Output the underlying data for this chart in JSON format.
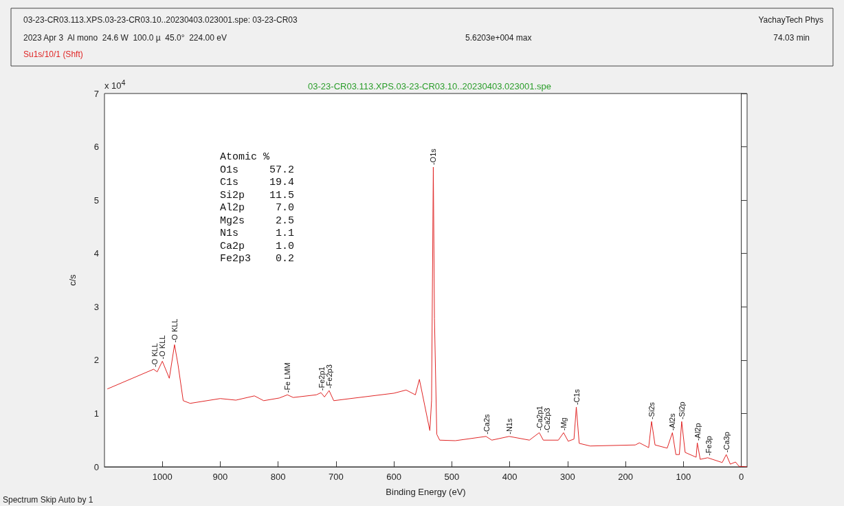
{
  "chart_data": {
    "type": "line",
    "title": "03-23-CR03.113.XPS.03-23-CR03.10..20230403.023001.spe",
    "xlabel": "Binding Energy (eV)",
    "ylabel": "c/s",
    "xlim": [
      1100,
      -10
    ],
    "xticks": [
      0,
      100,
      200,
      300,
      400,
      500,
      600,
      700,
      800,
      900,
      1000
    ],
    "ylim": [
      0,
      7
    ],
    "yticks": [
      0,
      1,
      2,
      3,
      4,
      5,
      6,
      7
    ],
    "marker": "none",
    "line_style": "solid",
    "series": [
      {
        "color": "#e02424",
        "x": [
          1095,
          1015,
          1009,
          1000,
          988,
          979,
          973,
          964,
          952,
          900,
          873,
          841,
          825,
          798,
          784,
          774,
          734,
          726,
          720,
          712,
          704,
          675,
          600,
          579,
          563,
          556,
          538,
          535,
          532,
          530,
          526,
          521,
          494,
          441,
          431,
          401,
          366,
          349,
          342,
          316,
          307,
          299,
          289,
          285,
          280,
          261,
          183,
          176,
          160,
          155,
          149,
          128,
          119,
          113,
          107,
          103,
          97,
          78,
          76,
          71,
          58,
          33,
          26,
          19,
          10,
          4,
          -10
        ],
        "values": [
          1.46,
          1.83,
          1.78,
          1.98,
          1.66,
          2.29,
          1.92,
          1.24,
          1.19,
          1.28,
          1.25,
          1.33,
          1.24,
          1.29,
          1.35,
          1.3,
          1.35,
          1.39,
          1.31,
          1.43,
          1.24,
          1.28,
          1.38,
          1.44,
          1.35,
          1.64,
          0.68,
          1.24,
          5.62,
          2.78,
          0.61,
          0.5,
          0.49,
          0.57,
          0.5,
          0.57,
          0.5,
          0.64,
          0.5,
          0.5,
          0.64,
          0.48,
          0.52,
          1.12,
          0.44,
          0.39,
          0.41,
          0.45,
          0.36,
          0.85,
          0.41,
          0.35,
          0.64,
          0.23,
          0.23,
          0.85,
          0.27,
          0.18,
          0.45,
          0.14,
          0.17,
          0.08,
          0.23,
          0.05,
          0.09,
          0.01,
          0
        ]
      }
    ],
    "annotations": [
      "03-23-CR03.113.XPS.03-23-CR03.10..20230403.023001.spe: 03-23-CR03",
      "YachayTech Phys",
      "2023 Apr 3  Al mono  24.6 W  100.0 µ  45.0°  224.00 eV",
      "5.6203e+004 max",
      "74.03 min",
      "Su1s/10/1 (Shft)",
      "Spectrum Skip Auto by 1",
      "x 10$^{4}$",
      "Atomic %\nO1s     57.2\nC1s     19.4\nSi2p    11.5\nAl2p     7.0\nMg2s     2.5\nN1s      1.1\nCa2p     1.0\nFe2p3    0.2",
      {
        "text": "-O KLL",
        "x": 1013,
        "y": 1.83
      },
      {
        "text": "-O KLL",
        "x": 1000,
        "y": 1.98
      },
      {
        "text": "-O KLL",
        "x": 979,
        "y": 2.29
      },
      {
        "text": "-Fe LMM",
        "x": 784,
        "y": 1.35
      },
      {
        "text": "-Fe2p1",
        "x": 725,
        "y": 1.39
      },
      {
        "text": "-Fe2p3",
        "x": 712,
        "y": 1.43
      },
      {
        "text": "-O1s",
        "x": 532,
        "y": 5.62
      },
      {
        "text": "-Ca2s",
        "x": 440,
        "y": 0.57
      },
      {
        "text": "-N1s",
        "x": 401,
        "y": 0.57
      },
      {
        "text": "-Ca2p1",
        "x": 349,
        "y": 0.64
      },
      {
        "text": "-Ca2p3",
        "x": 343,
        "y": 0.6
      },
      {
        "text": "-Mg",
        "x": 307,
        "y": 0.64
      },
      {
        "text": "-C1s",
        "x": 285,
        "y": 1.12
      },
      {
        "text": "-Si2s",
        "x": 155,
        "y": 0.85
      },
      {
        "text": "-Al2s",
        "x": 119,
        "y": 0.64
      },
      {
        "text": "-Si2p",
        "x": 103,
        "y": 0.85
      },
      {
        "text": "-Al2p",
        "x": 76,
        "y": 0.45
      },
      {
        "text": "-Fe3p",
        "x": 57,
        "y": 0.17
      },
      {
        "text": "-Ca3p",
        "x": 26,
        "y": 0.23
      }
    ]
  }
}
